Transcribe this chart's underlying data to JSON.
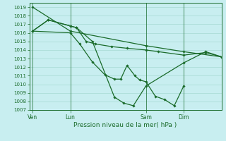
{
  "title": "Pression niveau de la mer( hPa )",
  "bg_color": "#c8eef0",
  "grid_color": "#9dd4cc",
  "line_color": "#1a6b2a",
  "ylim": [
    1007,
    1019.5
  ],
  "yticks": [
    1007,
    1008,
    1009,
    1010,
    1011,
    1012,
    1013,
    1014,
    1015,
    1016,
    1017,
    1018,
    1019
  ],
  "xtick_labels": [
    "Ven",
    "Lun",
    "Sam",
    "Dim"
  ],
  "xtick_positions": [
    0,
    24,
    72,
    96
  ],
  "xlim": [
    -2,
    120
  ],
  "lines": [
    {
      "x": [
        0,
        24,
        72,
        96,
        120
      ],
      "y": [
        1019,
        1016.2,
        1014.5,
        1013.8,
        1013.2
      ]
    },
    {
      "x": [
        0,
        10,
        24,
        28,
        34,
        40,
        50,
        60,
        72,
        80,
        96,
        110,
        120
      ],
      "y": [
        1016.2,
        1017.5,
        1016.8,
        1016.6,
        1015.0,
        1014.7,
        1014.4,
        1014.2,
        1014.0,
        1013.8,
        1013.4,
        1013.7,
        1013.2
      ]
    },
    {
      "x": [
        0,
        24,
        30,
        38,
        46,
        52,
        56,
        60,
        65,
        68,
        72,
        78,
        84,
        90,
        96
      ],
      "y": [
        1016.2,
        1016.0,
        1014.7,
        1012.6,
        1011.1,
        1010.6,
        1010.6,
        1012.2,
        1011.0,
        1010.5,
        1010.3,
        1008.6,
        1008.2,
        1007.5,
        1009.8
      ]
    },
    {
      "x": [
        0,
        10,
        24,
        28,
        38,
        52,
        58,
        64,
        72,
        96,
        110,
        120
      ],
      "y": [
        1016.2,
        1017.5,
        1016.8,
        1016.6,
        1015.0,
        1008.5,
        1007.8,
        1007.5,
        1009.8,
        1012.5,
        1013.8,
        1013.2
      ]
    }
  ]
}
